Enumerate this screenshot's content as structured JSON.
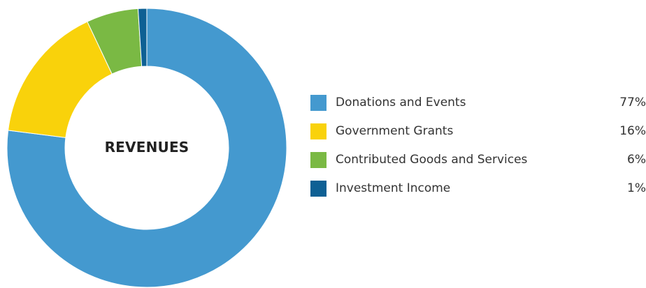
{
  "chart_data": {
    "type": "pie",
    "variant": "donut",
    "center_label": "REVENUES",
    "categories": [
      "Donations and Events",
      "Government Grants",
      "Contributed Goods and Services",
      "Investment Income"
    ],
    "values": [
      77,
      16,
      6,
      1
    ],
    "value_labels": [
      "77%",
      "16%",
      "6%",
      "1%"
    ],
    "colors": [
      "#4499cf",
      "#f9d20b",
      "#7ab944",
      "#0e6094"
    ],
    "legend_position": "right"
  }
}
